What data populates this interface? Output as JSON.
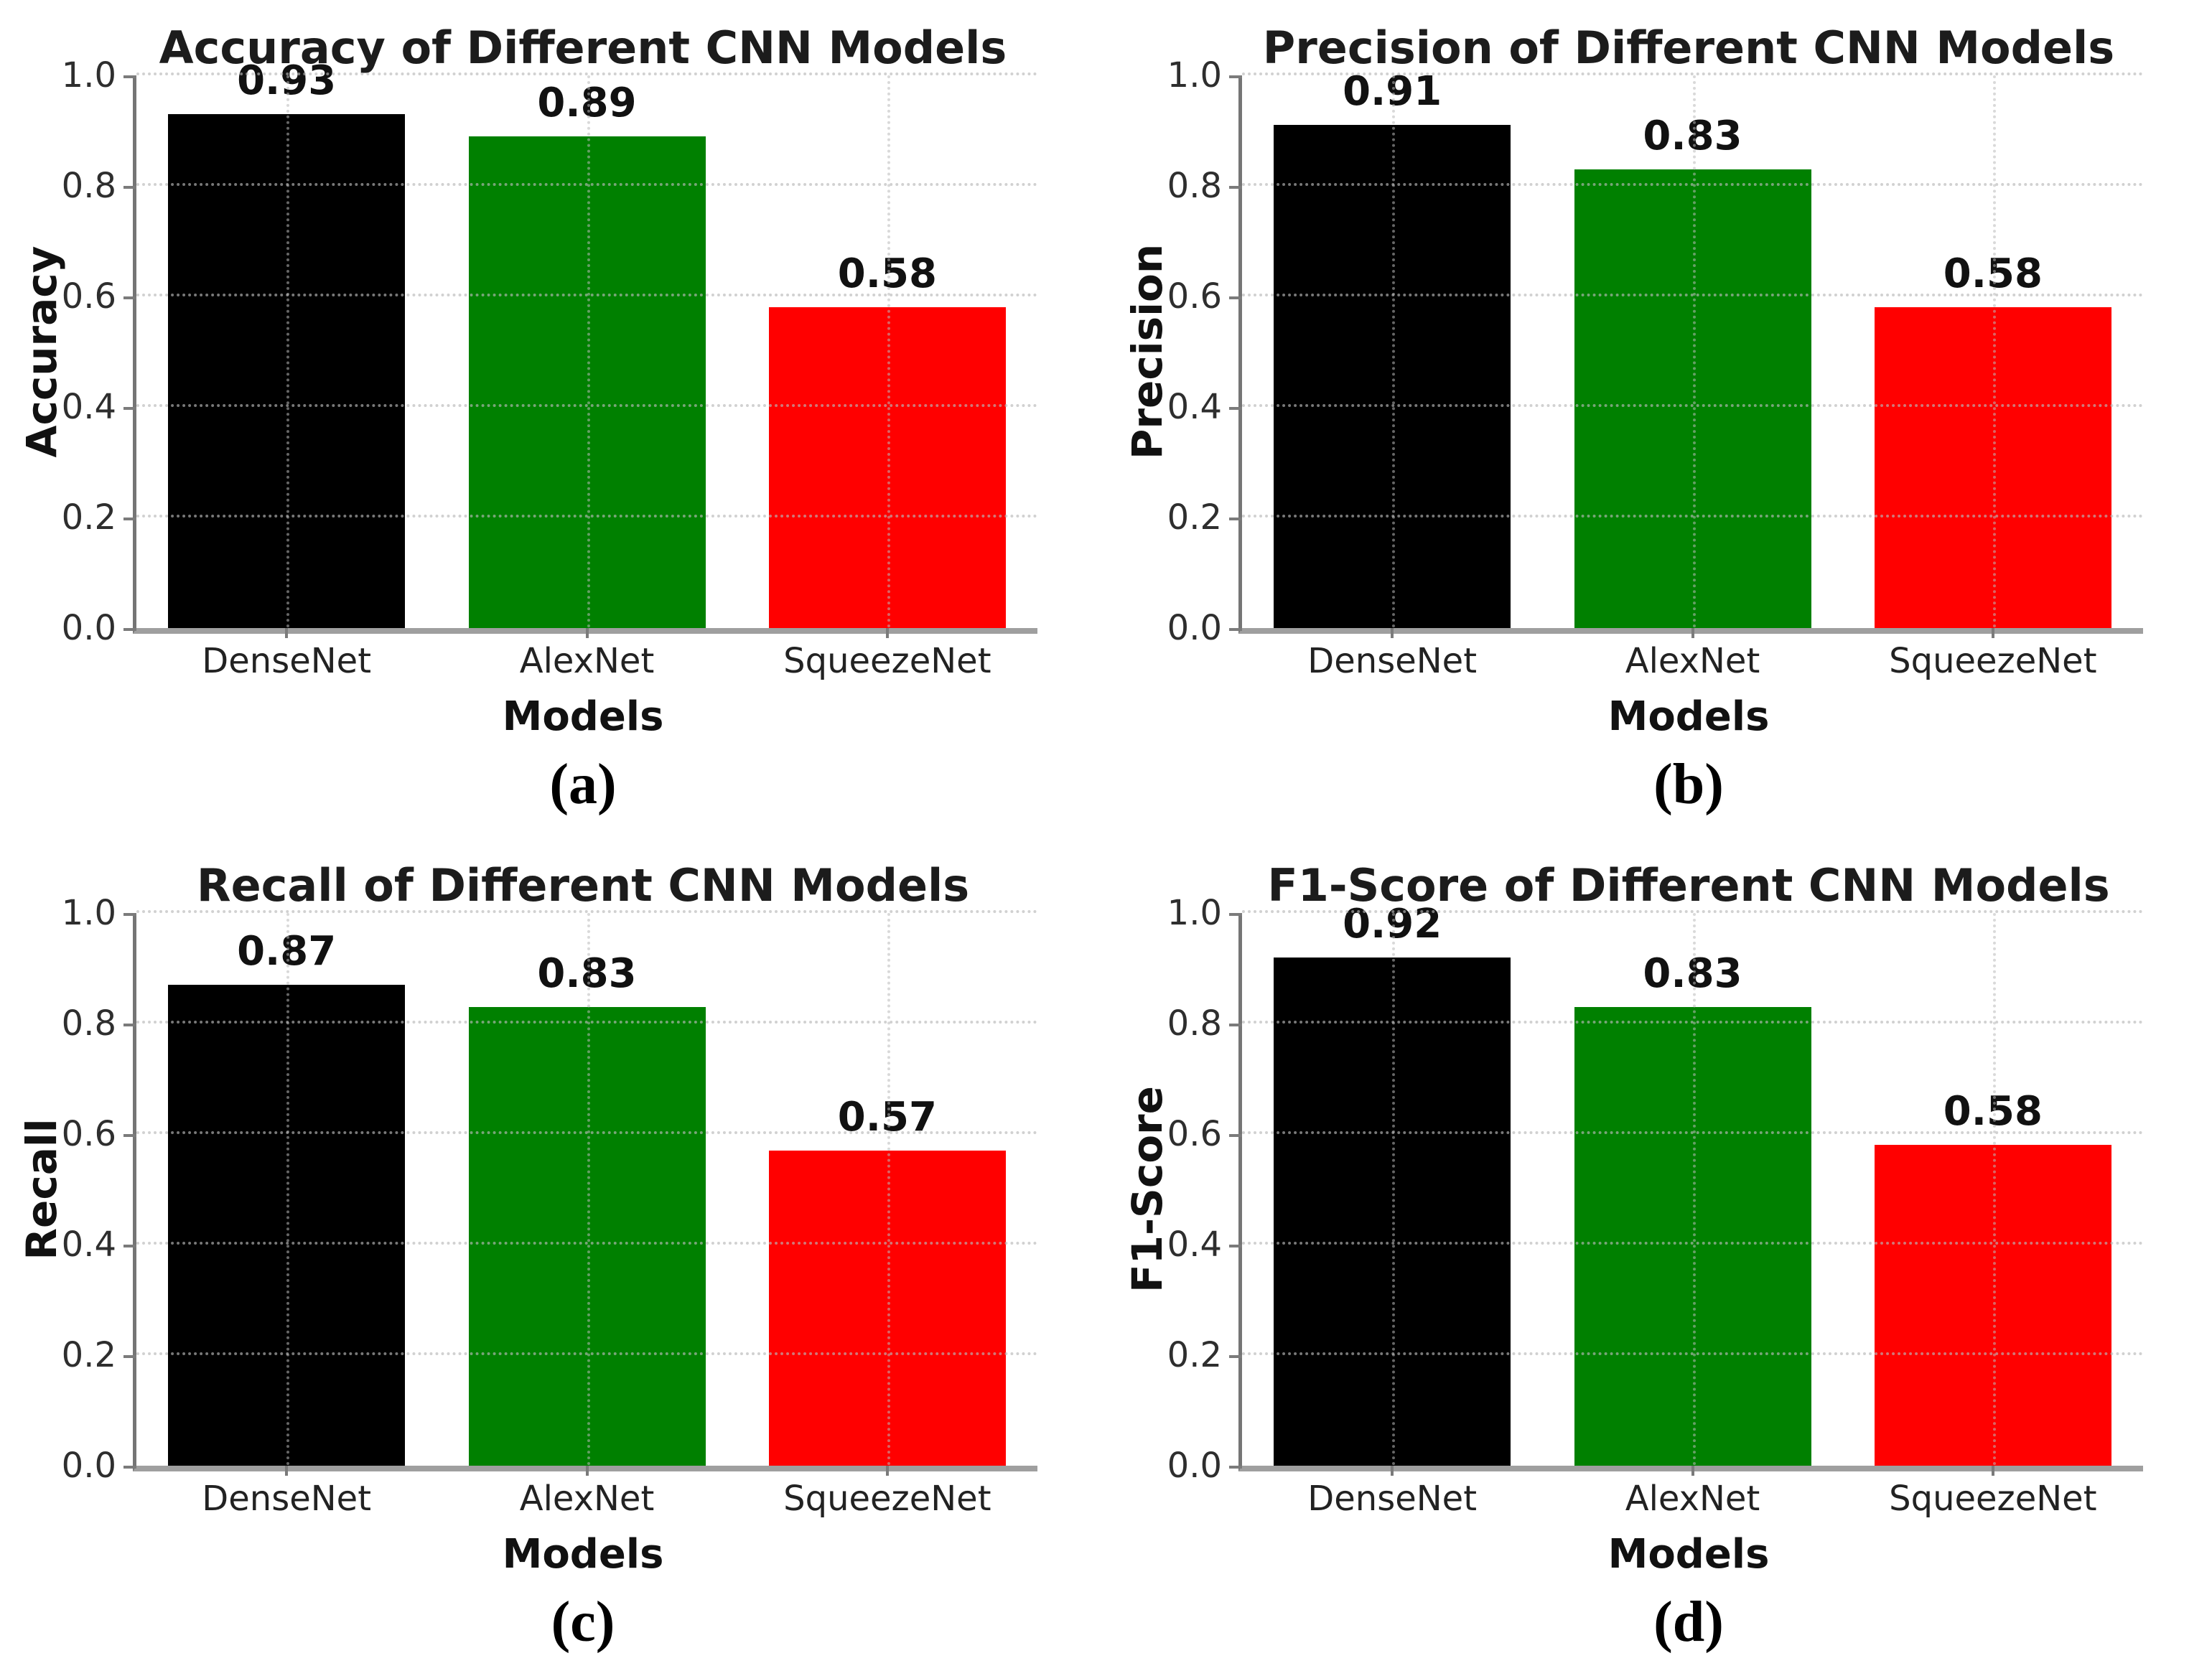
{
  "styles": {
    "background": "#ffffff",
    "grid_color": "#b9b9b9",
    "axis_color": "#7b7b7b",
    "text_color": "#1a1a1a"
  },
  "chart_data": [
    {
      "type": "bar",
      "title": "Accuracy of Different CNN Models",
      "xlabel": "Models",
      "ylabel": "Accuracy",
      "caption": "(a)",
      "categories": [
        "DenseNet",
        "AlexNet",
        "SqueezeNet"
      ],
      "values": [
        0.93,
        0.89,
        0.58
      ],
      "value_labels": [
        "0.93",
        "0.89",
        "0.58"
      ],
      "bar_colors": [
        "#000000",
        "#008000",
        "#ff0000"
      ],
      "ylim": [
        0.0,
        1.0
      ],
      "yticks": [
        0.0,
        0.2,
        0.4,
        0.6,
        0.8,
        1.0
      ],
      "ytick_labels": [
        "0.0",
        "0.2",
        "0.4",
        "0.6",
        "0.8",
        "1.0"
      ],
      "grid": true
    },
    {
      "type": "bar",
      "title": "Precision of Different CNN Models",
      "xlabel": "Models",
      "ylabel": "Precision",
      "caption": "(b)",
      "categories": [
        "DenseNet",
        "AlexNet",
        "SqueezeNet"
      ],
      "values": [
        0.91,
        0.83,
        0.58
      ],
      "value_labels": [
        "0.91",
        "0.83",
        "0.58"
      ],
      "bar_colors": [
        "#000000",
        "#008000",
        "#ff0000"
      ],
      "ylim": [
        0.0,
        1.0
      ],
      "yticks": [
        0.0,
        0.2,
        0.4,
        0.6,
        0.8,
        1.0
      ],
      "ytick_labels": [
        "0.0",
        "0.2",
        "0.4",
        "0.6",
        "0.8",
        "1.0"
      ],
      "grid": true
    },
    {
      "type": "bar",
      "title": "Recall of Different CNN Models",
      "xlabel": "Models",
      "ylabel": "Recall",
      "caption": "(c)",
      "categories": [
        "DenseNet",
        "AlexNet",
        "SqueezeNet"
      ],
      "values": [
        0.87,
        0.83,
        0.57
      ],
      "value_labels": [
        "0.87",
        "0.83",
        "0.57"
      ],
      "bar_colors": [
        "#000000",
        "#008000",
        "#ff0000"
      ],
      "ylim": [
        0.0,
        1.0
      ],
      "yticks": [
        0.0,
        0.2,
        0.4,
        0.6,
        0.8,
        1.0
      ],
      "ytick_labels": [
        "0.0",
        "0.2",
        "0.4",
        "0.6",
        "0.8",
        "1.0"
      ],
      "grid": true
    },
    {
      "type": "bar",
      "title": "F1-Score of Different CNN Models",
      "xlabel": "Models",
      "ylabel": "F1-Score",
      "caption": "(d)",
      "categories": [
        "DenseNet",
        "AlexNet",
        "SqueezeNet"
      ],
      "values": [
        0.92,
        0.83,
        0.58
      ],
      "value_labels": [
        "0.92",
        "0.83",
        "0.58"
      ],
      "bar_colors": [
        "#000000",
        "#008000",
        "#ff0000"
      ],
      "ylim": [
        0.0,
        1.0
      ],
      "yticks": [
        0.0,
        0.2,
        0.4,
        0.6,
        0.8,
        1.0
      ],
      "ytick_labels": [
        "0.0",
        "0.2",
        "0.4",
        "0.6",
        "0.8",
        "1.0"
      ],
      "grid": true
    }
  ]
}
